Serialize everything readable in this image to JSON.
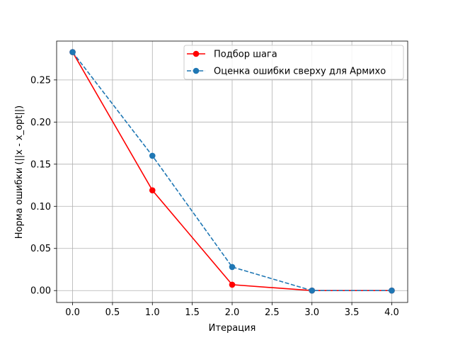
{
  "chart_data": {
    "type": "line",
    "title": "",
    "xlabel": "Итерация",
    "ylabel": "Норма ошибки (||x - x_opt||)",
    "xlim": [
      -0.2,
      4.2
    ],
    "ylim": [
      -0.0141,
      0.2961
    ],
    "xticks": [
      0.0,
      0.5,
      1.0,
      1.5,
      2.0,
      2.5,
      3.0,
      3.5,
      4.0
    ],
    "xtick_labels": [
      "0.0",
      "0.5",
      "1.0",
      "1.5",
      "2.0",
      "2.5",
      "3.0",
      "3.5",
      "4.0"
    ],
    "yticks": [
      0.0,
      0.05,
      0.1,
      0.15,
      0.2,
      0.25
    ],
    "ytick_labels": [
      "0.00",
      "0.05",
      "0.10",
      "0.15",
      "0.20",
      "0.25"
    ],
    "grid": true,
    "legend_position": "upper right",
    "series": [
      {
        "name": "Подбор шага",
        "x": [
          0,
          1,
          2,
          3,
          4
        ],
        "y": [
          0.283,
          0.119,
          0.007,
          0.0,
          0.0
        ],
        "color": "#ff0000",
        "linestyle": "solid",
        "marker": "circle"
      },
      {
        "name": "Оценка ошибки сверху для Армихо",
        "x": [
          0,
          1,
          2,
          3,
          4
        ],
        "y": [
          0.283,
          0.16,
          0.028,
          0.0,
          0.0
        ],
        "color": "#1f77b4",
        "linestyle": "dashed",
        "marker": "circle"
      }
    ]
  }
}
